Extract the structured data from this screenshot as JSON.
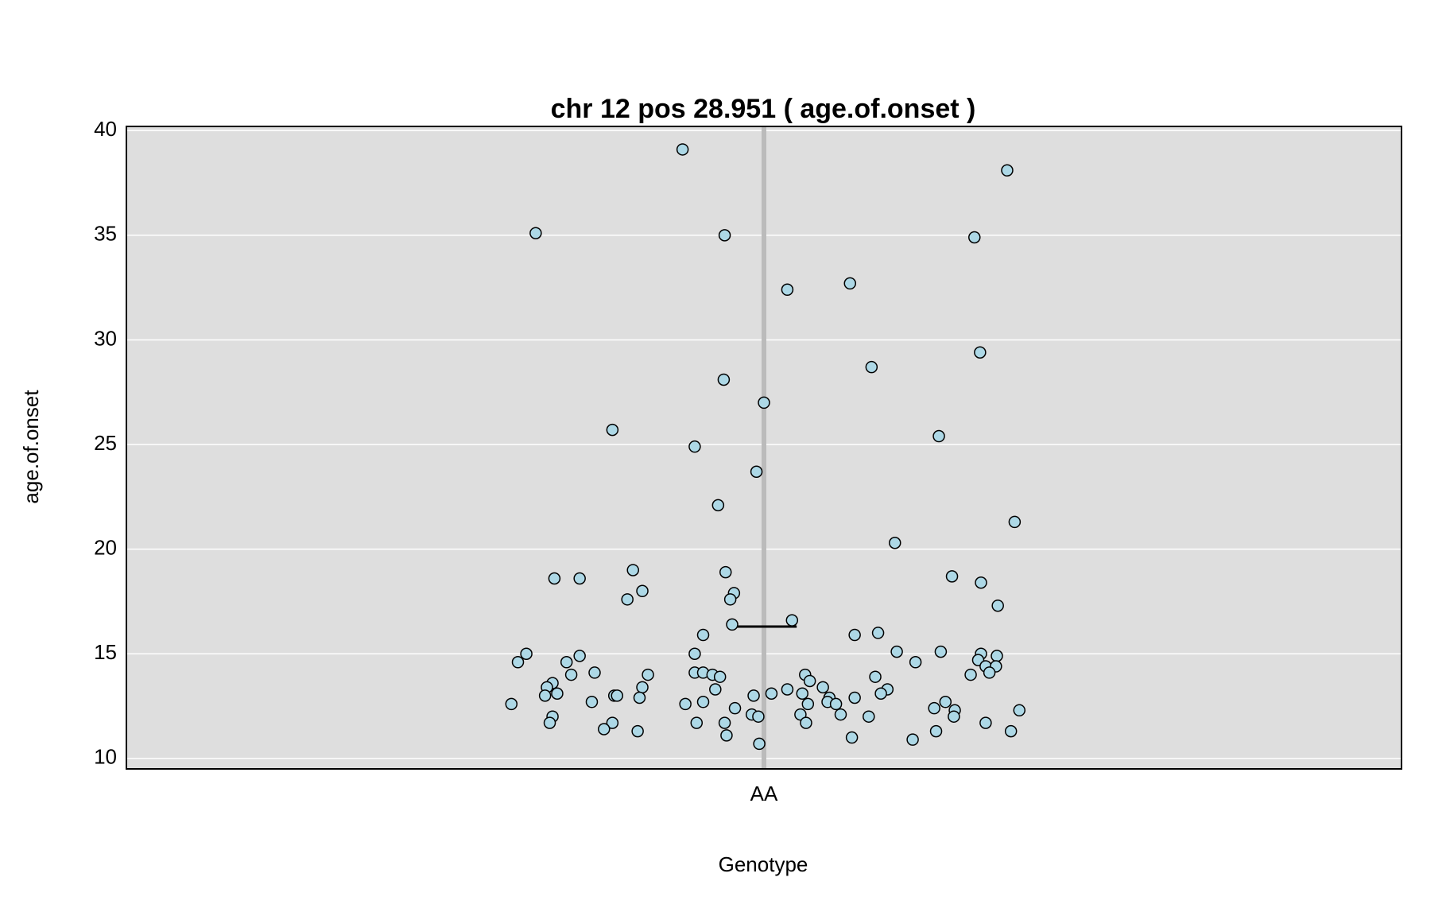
{
  "chart_data": {
    "type": "strip",
    "title": "chr 12 pos 28.951 ( age.of.onset )",
    "xlabel": "Genotype",
    "ylabel": "age.of.onset",
    "categories": [
      "AA"
    ],
    "values": [
      39.1,
      38.1,
      35.1,
      35.0,
      34.9,
      32.4,
      32.7,
      29.4,
      28.7,
      28.1,
      27.0,
      25.7,
      25.4,
      24.9,
      23.7,
      22.1,
      21.3,
      20.3,
      19.0,
      18.9,
      18.6,
      18.6,
      18.7,
      18.4,
      18.0,
      17.9,
      17.6,
      17.6,
      17.3,
      16.6,
      16.4,
      15.9,
      15.9,
      16.0,
      15.0,
      14.6,
      15.0,
      15.1,
      15.1,
      15.0,
      14.9,
      14.9,
      14.6,
      14.6,
      14.7,
      14.4,
      14.4,
      14.0,
      14.1,
      14.0,
      14.1,
      14.1,
      14.0,
      13.9,
      14.0,
      13.9,
      14.0,
      14.1,
      13.6,
      13.4,
      13.3,
      13.7,
      13.4,
      13.3,
      13.1,
      13.4,
      13.3,
      13.0,
      13.1,
      13.0,
      13.0,
      12.9,
      13.0,
      13.1,
      13.1,
      12.9,
      12.9,
      12.6,
      12.7,
      12.6,
      12.7,
      12.7,
      12.6,
      12.6,
      12.7,
      12.4,
      12.4,
      12.3,
      12.3,
      12.0,
      12.1,
      12.0,
      12.1,
      12.1,
      12.0,
      12.0,
      11.7,
      11.7,
      11.7,
      11.7,
      11.7,
      11.7,
      11.4,
      11.3,
      11.1,
      11.0,
      10.9,
      11.3,
      11.3,
      10.7
    ],
    "mean": 16.3,
    "color": "#add8e6",
    "ylim": [
      9.5,
      40.2
    ],
    "yticks": [
      10,
      15,
      20,
      25,
      30,
      35,
      40
    ],
    "grid": true
  }
}
